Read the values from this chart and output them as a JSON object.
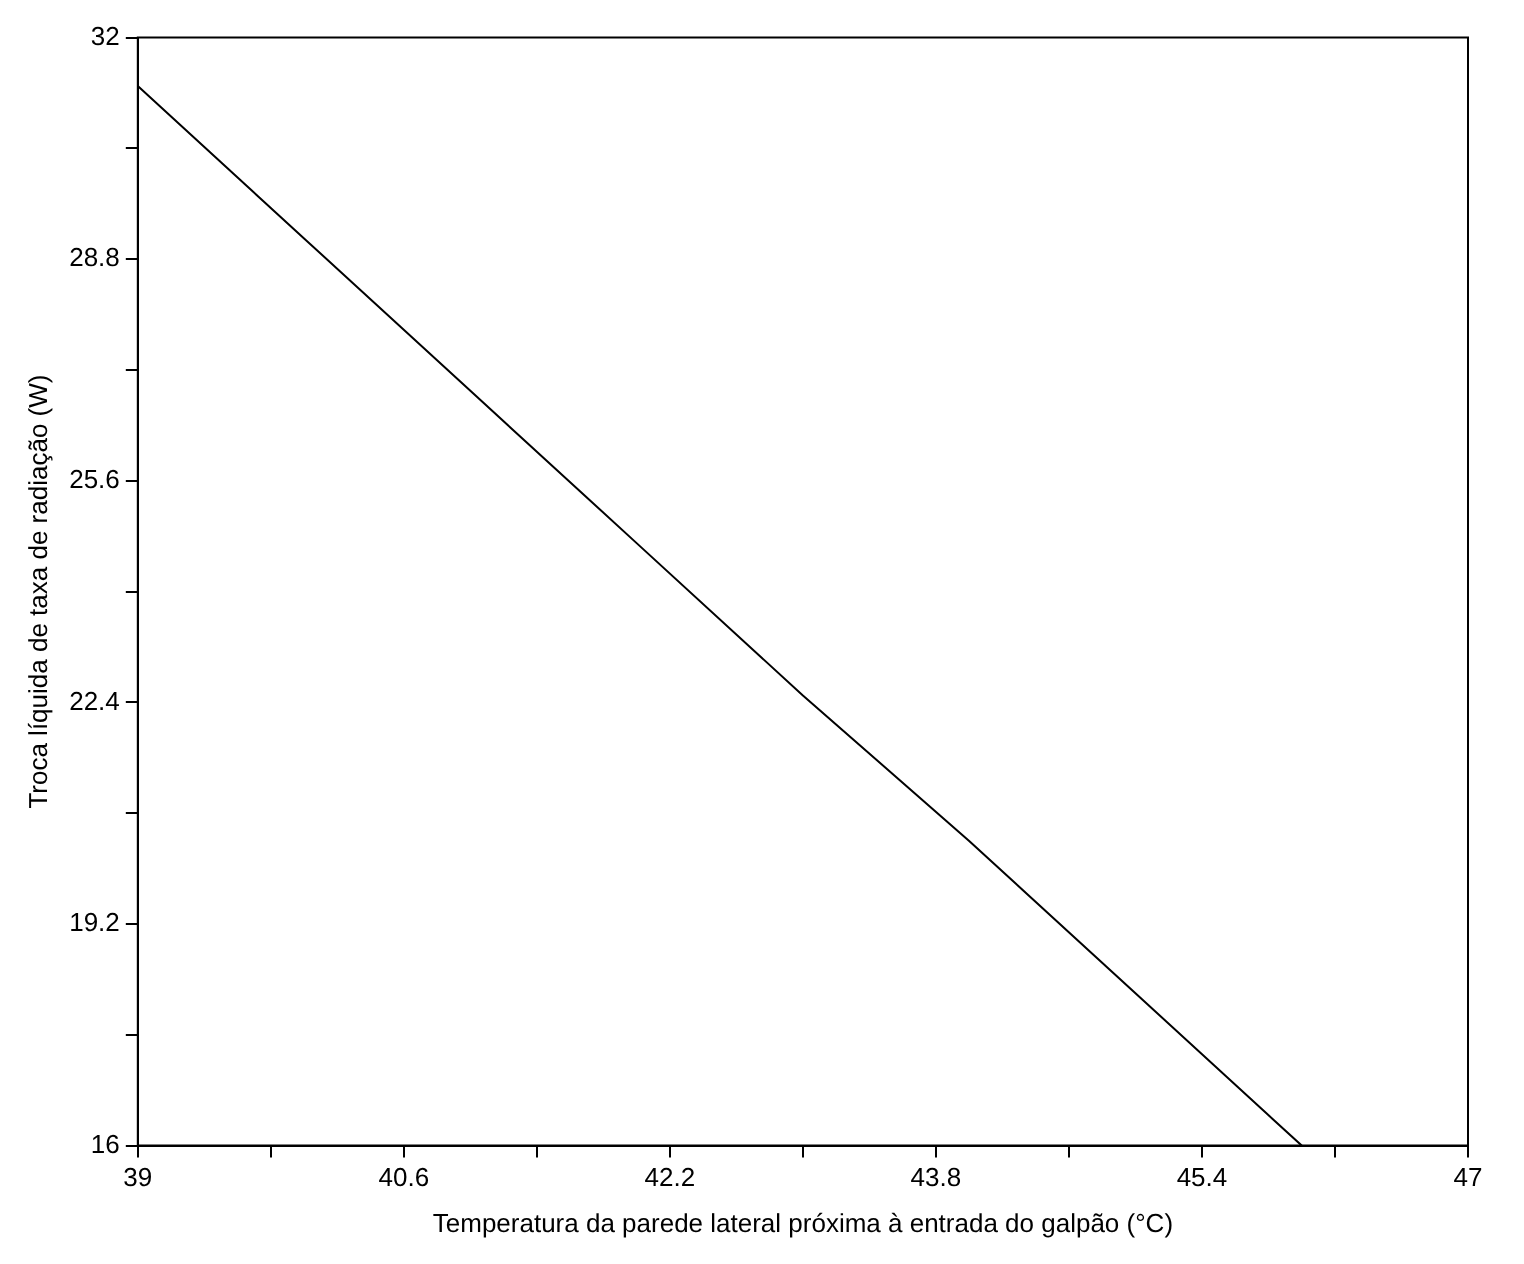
{
  "chart_data": {
    "type": "line",
    "xlabel": "Temperatura da parede lateral próxima à entrada do galpão (°C)",
    "ylabel": "Troca líquida de taxa de radiação (W)",
    "x": [
      39,
      40,
      41,
      42,
      43,
      44,
      45,
      46
    ],
    "series": [
      {
        "color": "#000000",
        "values": [
          31.3,
          29.1,
          26.9,
          24.7,
          22.5,
          20.4,
          18.2,
          16.0
        ]
      }
    ],
    "xlim": [
      39,
      47
    ],
    "ylim": [
      16,
      32
    ],
    "xticks": [
      39,
      {
        "value": 39.8,
        "label": null
      },
      40.6,
      {
        "value": 41.4,
        "label": null
      },
      42.2,
      {
        "value": 43,
        "label": null
      },
      43.8,
      {
        "value": 44.6,
        "label": null
      },
      45.4,
      {
        "value": 46.2,
        "label": null
      },
      47
    ],
    "yticks": [
      16,
      {
        "value": 17.6,
        "label": null
      },
      19.2,
      {
        "value": 20.8,
        "label": null
      },
      22.4,
      {
        "value": 24,
        "label": null
      },
      25.6,
      {
        "value": 27.2,
        "label": null
      },
      28.8,
      {
        "value": 30.4,
        "label": null
      },
      32
    ],
    "grid": false,
    "legend": false,
    "marker": "none",
    "line_style": "solid"
  }
}
